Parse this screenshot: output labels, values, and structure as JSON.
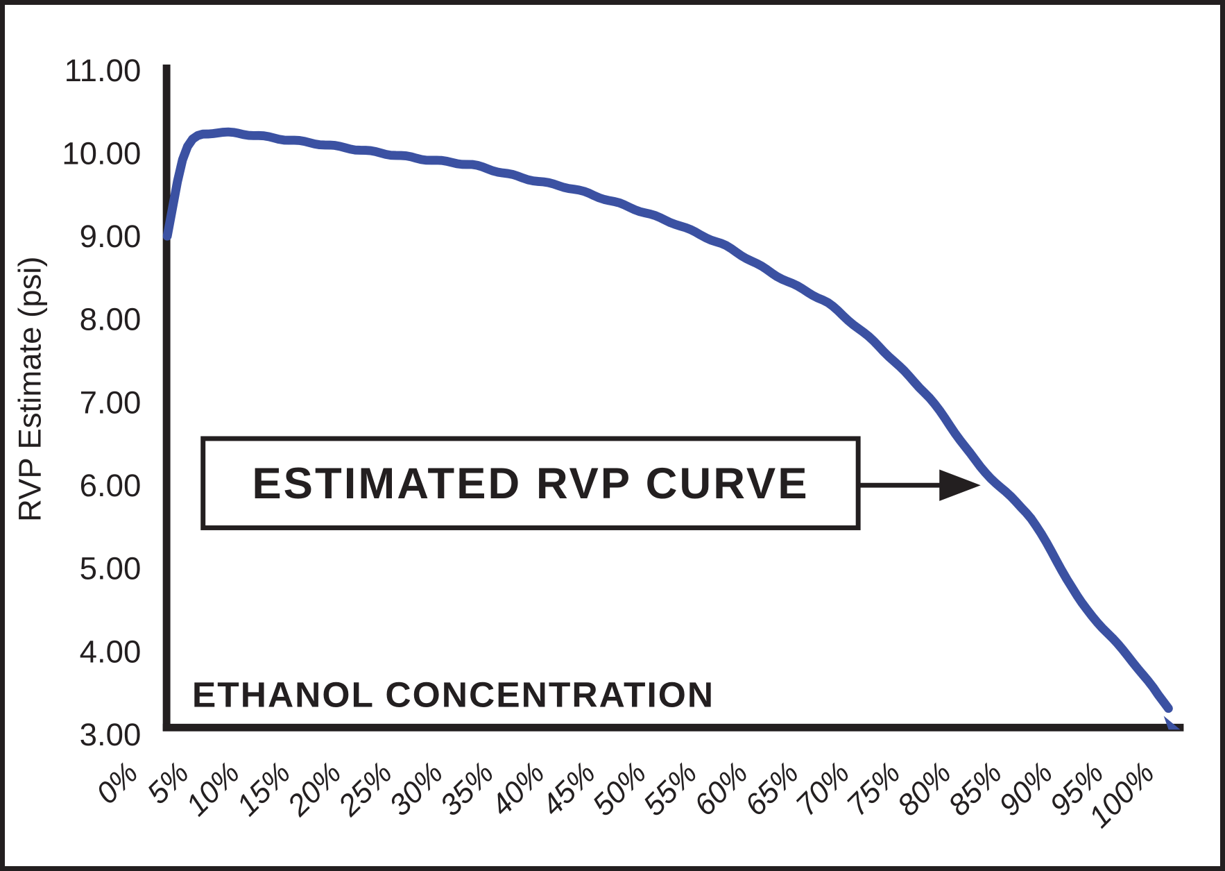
{
  "colors": {
    "ink": "#231f20",
    "curve": "#3b51a2",
    "background": "#ffffff"
  },
  "chart_data": {
    "type": "line",
    "title": "",
    "xlabel": "ETHANOL CONCENTRATION",
    "ylabel": "RVP Estimate (psi)",
    "xlim": [
      0,
      100
    ],
    "ylim": [
      3,
      11
    ],
    "grid": false,
    "legend_position": "none",
    "x_tick_labels": [
      "0%",
      "5%",
      "10%",
      "15%",
      "20%",
      "25%",
      "30%",
      "35%",
      "40%",
      "45%",
      "50%",
      "55%",
      "60%",
      "65%",
      "70%",
      "75%",
      "80%",
      "85%",
      "90%",
      "95%",
      "100%"
    ],
    "x_tick_values": [
      0,
      5,
      10,
      15,
      20,
      25,
      30,
      35,
      40,
      45,
      50,
      55,
      60,
      65,
      70,
      75,
      80,
      85,
      90,
      95,
      100
    ],
    "y_tick_labels": [
      "11.00",
      "10.00",
      "9.00",
      "8.00",
      "7.00",
      "6.00",
      "5.00",
      "4.00",
      "3.00"
    ],
    "y_tick_values": [
      11,
      10,
      9,
      8,
      7,
      6,
      5,
      4,
      3
    ],
    "series": [
      {
        "name": "Estimated RVP Curve",
        "color": "#3b51a2",
        "points": [
          [
            0,
            9.0
          ],
          [
            0.7,
            9.45
          ],
          [
            1.4,
            9.95
          ],
          [
            2.2,
            10.18
          ],
          [
            3,
            10.23
          ],
          [
            5,
            10.25
          ],
          [
            7,
            10.24
          ],
          [
            10,
            10.19
          ],
          [
            15,
            10.11
          ],
          [
            20,
            10.02
          ],
          [
            25,
            9.93
          ],
          [
            30,
            9.86
          ],
          [
            35,
            9.7
          ],
          [
            40,
            9.57
          ],
          [
            45,
            9.37
          ],
          [
            50,
            9.15
          ],
          [
            55,
            8.88
          ],
          [
            60,
            8.52
          ],
          [
            65,
            8.2
          ],
          [
            70,
            7.68
          ],
          [
            75,
            7.06
          ],
          [
            80,
            6.21
          ],
          [
            85,
            5.62
          ],
          [
            90,
            4.56
          ],
          [
            95,
            3.88
          ],
          [
            100,
            3.07
          ]
        ]
      }
    ],
    "annotation": {
      "label": "ESTIMATED RVP CURVE",
      "arrow_target_x_percent": 80
    }
  }
}
